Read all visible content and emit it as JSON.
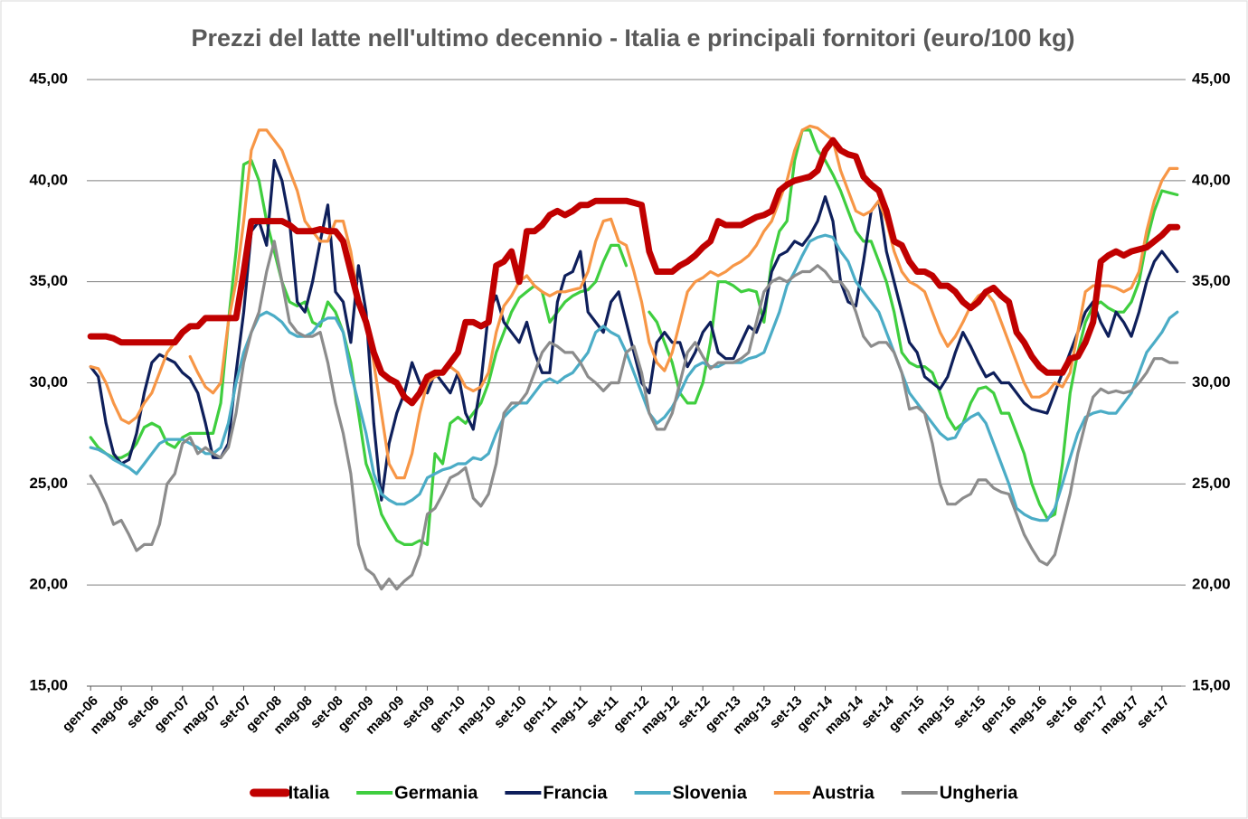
{
  "chart_data": {
    "type": "line",
    "title": "Prezzi del latte nell'ultimo decennio - Italia e principali fornitori (euro/100 kg)",
    "categories": [
      "gen-06",
      null,
      null,
      null,
      "mag-06",
      null,
      null,
      null,
      "set-06",
      null,
      null,
      null,
      "gen-07",
      null,
      null,
      null,
      "mag-07",
      null,
      null,
      null,
      "set-07",
      null,
      null,
      null,
      "gen-08",
      null,
      null,
      null,
      "mag-08",
      null,
      null,
      null,
      "set-08",
      null,
      null,
      null,
      "gen-09",
      null,
      null,
      null,
      "mag-09",
      null,
      null,
      null,
      "set-09",
      null,
      null,
      null,
      "gen-10",
      null,
      null,
      null,
      "mag-10",
      null,
      null,
      null,
      "set-10",
      null,
      null,
      null,
      "gen-11",
      null,
      null,
      null,
      "mag-11",
      null,
      null,
      null,
      "set-11",
      null,
      null,
      null,
      "gen-12",
      null,
      null,
      null,
      "mag-12",
      null,
      null,
      null,
      "set-12",
      null,
      null,
      null,
      "gen-13",
      null,
      null,
      null,
      "mag-13",
      null,
      null,
      null,
      "set-13",
      null,
      null,
      null,
      "gen-14",
      null,
      null,
      null,
      "mag-14",
      null,
      null,
      null,
      "set-14",
      null,
      null,
      null,
      "gen-15",
      null,
      null,
      null,
      "mag-15",
      null,
      null,
      null,
      "set-15",
      null,
      null,
      null,
      "gen-16",
      null,
      null,
      null,
      "mag-16",
      null,
      null,
      null,
      "set-16",
      null,
      null,
      null,
      "gen-17",
      null,
      null,
      null,
      "mag-17",
      null,
      null,
      null,
      "set-17",
      null,
      null
    ],
    "series": [
      {
        "name": "Italia",
        "color": "#c00000",
        "values": [
          32.3,
          32.3,
          32.3,
          32.2,
          32.0,
          32.0,
          32.0,
          32.0,
          32.0,
          32.0,
          32.0,
          32.0,
          32.5,
          32.8,
          32.8,
          33.2,
          33.2,
          33.2,
          33.2,
          33.2,
          35.5,
          38.0,
          38.0,
          38.0,
          38.0,
          38.0,
          37.8,
          37.5,
          37.5,
          37.5,
          37.6,
          37.5,
          37.5,
          37.0,
          35.5,
          34.0,
          33.0,
          31.5,
          30.5,
          30.2,
          30.0,
          29.3,
          29.0,
          29.5,
          30.3,
          30.5,
          30.5,
          31.0,
          31.5,
          33.0,
          33.0,
          32.8,
          33.0,
          35.8,
          36.0,
          36.5,
          35.0,
          37.5,
          37.5,
          37.8,
          38.3,
          38.5,
          38.3,
          38.5,
          38.8,
          38.8,
          39.0,
          39.0,
          39.0,
          39.0,
          39.0,
          38.9,
          38.8,
          36.5,
          35.5,
          35.5,
          35.5,
          35.8,
          36.0,
          36.3,
          36.7,
          37.0,
          38.0,
          37.8,
          37.8,
          37.8,
          38.0,
          38.2,
          38.3,
          38.5,
          39.5,
          39.8,
          40.0,
          40.1,
          40.2,
          40.5,
          41.5,
          42.0,
          41.5,
          41.3,
          41.2,
          40.2,
          39.8,
          39.5,
          38.5,
          37.0,
          36.8,
          36.0,
          35.5,
          35.5,
          35.3,
          34.8,
          34.8,
          34.5,
          34.0,
          33.7,
          34.0,
          34.5,
          34.7,
          34.3,
          34.0,
          32.5,
          32.0,
          31.3,
          30.8,
          30.5,
          30.5,
          30.5,
          31.2,
          31.3,
          32.0,
          33.0,
          36.0,
          36.3,
          36.5,
          36.3,
          36.5,
          36.6,
          36.7,
          37.0,
          37.3,
          37.7,
          37.7
        ]
      },
      {
        "name": "Germania",
        "color": "#3fce3f",
        "values": [
          27.3,
          26.8,
          26.5,
          26.3,
          26.3,
          26.5,
          27.0,
          27.8,
          28.0,
          27.8,
          27.0,
          26.8,
          27.3,
          27.5,
          27.5,
          27.5,
          27.5,
          29.0,
          33.0,
          36.5,
          40.8,
          41.0,
          40.0,
          38.0,
          36.5,
          35.0,
          34.0,
          33.8,
          34.0,
          33.0,
          32.8,
          34.0,
          33.5,
          32.5,
          31.0,
          28.5,
          26.0,
          25.0,
          23.5,
          22.8,
          22.2,
          22.0,
          22.0,
          22.2,
          22.0,
          26.5,
          26.0,
          28.0,
          28.3,
          28.0,
          28.5,
          29.0,
          30.0,
          31.5,
          32.5,
          33.5,
          34.2,
          34.5,
          34.8,
          34.5,
          33.0,
          33.5,
          34.0,
          34.3,
          34.5,
          34.6,
          35.0,
          36.0,
          36.8,
          36.8,
          35.8,
          null,
          null,
          33.5,
          33.0,
          32.0,
          31.0,
          29.5,
          29.0,
          29.0,
          30.0,
          32.0,
          35.0,
          35.0,
          34.8,
          34.5,
          34.6,
          34.5,
          33.0,
          36.0,
          37.5,
          38.0,
          41.0,
          42.5,
          42.5,
          41.5,
          41.0,
          40.3,
          39.5,
          38.5,
          37.5,
          37.0,
          37.0,
          36.0,
          35.0,
          33.5,
          31.5,
          31.0,
          30.8,
          30.8,
          30.5,
          29.5,
          28.3,
          27.7,
          28.0,
          29.0,
          29.7,
          29.8,
          29.5,
          28.5,
          28.5,
          27.5,
          26.5,
          25.0,
          24.0,
          23.3,
          23.5,
          26.0,
          29.5,
          31.5,
          33.0,
          33.8,
          34.0,
          33.7,
          33.5,
          33.5,
          34.0,
          35.0,
          37.0,
          38.5,
          39.5,
          39.4,
          39.3
        ]
      },
      {
        "name": "Francia",
        "color": "#0e1f5b",
        "values": [
          30.8,
          30.3,
          28.0,
          26.5,
          26.0,
          26.2,
          27.5,
          29.5,
          31.0,
          31.4,
          31.2,
          31.0,
          30.5,
          30.2,
          29.5,
          28.0,
          26.3,
          26.3,
          27.0,
          30.5,
          33.5,
          37.5,
          38.0,
          36.8,
          41.0,
          40.0,
          38.0,
          34.0,
          33.5,
          35.0,
          37.0,
          38.8,
          34.5,
          34.0,
          32.0,
          35.8,
          33.5,
          28.0,
          24.2,
          27.0,
          28.5,
          29.5,
          31.0,
          30.0,
          29.5,
          30.5,
          30.0,
          29.5,
          30.5,
          28.5,
          27.7,
          30.0,
          33.5,
          34.3,
          33.0,
          32.5,
          32.0,
          33.0,
          31.5,
          30.5,
          30.5,
          34.0,
          35.3,
          35.5,
          36.5,
          33.5,
          33.0,
          32.5,
          34.0,
          34.5,
          33.0,
          31.5,
          30.0,
          29.5,
          32.0,
          32.5,
          32.0,
          32.0,
          30.8,
          31.5,
          32.5,
          33.0,
          31.5,
          31.2,
          31.2,
          32.0,
          32.8,
          32.5,
          33.5,
          35.5,
          36.3,
          36.5,
          37.0,
          36.8,
          37.3,
          38.0,
          39.2,
          38.0,
          35.0,
          34.0,
          33.8,
          36.0,
          38.5,
          39.0,
          36.5,
          35.0,
          33.5,
          32.0,
          31.5,
          30.3,
          30.0,
          29.7,
          30.3,
          31.5,
          32.5,
          31.8,
          31.0,
          30.3,
          30.5,
          30.0,
          30.0,
          29.5,
          29.0,
          28.7,
          28.6,
          28.5,
          29.5,
          30.5,
          31.5,
          32.5,
          33.5,
          34.0,
          33.0,
          32.3,
          33.5,
          33.0,
          32.3,
          33.5,
          35.0,
          36.0,
          36.5,
          36.0,
          35.5
        ]
      },
      {
        "name": "Slovenia",
        "color": "#4bacc6",
        "values": [
          26.8,
          26.7,
          26.5,
          26.2,
          26.0,
          25.8,
          25.5,
          26.0,
          26.5,
          27.0,
          27.2,
          27.2,
          27.2,
          27.0,
          26.8,
          26.5,
          26.5,
          26.8,
          28.0,
          30.0,
          31.5,
          32.5,
          33.3,
          33.5,
          33.3,
          33.0,
          32.5,
          32.3,
          32.3,
          32.5,
          33.0,
          33.2,
          33.2,
          32.5,
          30.5,
          29.0,
          27.5,
          25.5,
          24.5,
          24.2,
          24.0,
          24.0,
          24.2,
          24.5,
          25.3,
          25.5,
          25.7,
          25.8,
          26.0,
          26.0,
          26.3,
          26.2,
          26.5,
          27.5,
          28.3,
          28.7,
          29.0,
          29.0,
          29.5,
          30.0,
          30.2,
          30.0,
          30.3,
          30.5,
          31.0,
          31.5,
          32.5,
          32.8,
          32.5,
          32.3,
          31.5,
          30.5,
          29.5,
          28.5,
          28.0,
          28.3,
          28.8,
          29.5,
          30.3,
          30.8,
          31.0,
          30.8,
          30.8,
          31.0,
          31.0,
          31.0,
          31.2,
          31.3,
          31.5,
          32.5,
          33.5,
          34.8,
          35.5,
          36.3,
          37.0,
          37.2,
          37.3,
          37.2,
          36.5,
          36.0,
          35.0,
          34.5,
          34.0,
          33.5,
          32.5,
          31.5,
          30.5,
          29.5,
          29.0,
          28.5,
          28.0,
          27.5,
          27.2,
          27.3,
          28.0,
          28.3,
          28.5,
          28.0,
          27.0,
          26.0,
          25.0,
          23.8,
          23.5,
          23.3,
          23.2,
          23.2,
          23.8,
          25.0,
          26.3,
          27.5,
          28.3,
          28.5,
          28.6,
          28.5,
          28.5,
          29.0,
          29.5,
          30.5,
          31.5,
          32.0,
          32.5,
          33.2,
          33.5
        ]
      },
      {
        "name": "Austria",
        "color": "#f79646",
        "values": [
          30.8,
          30.7,
          30.0,
          29.0,
          28.2,
          28.0,
          28.3,
          29.0,
          29.5,
          30.5,
          31.5,
          32.0,
          null,
          31.3,
          30.5,
          29.8,
          29.5,
          30.0,
          33.0,
          35.0,
          38.0,
          41.5,
          42.5,
          42.5,
          42.0,
          41.5,
          40.5,
          39.5,
          38.0,
          37.5,
          37.0,
          37.0,
          38.0,
          38.0,
          36.5,
          34.0,
          33.0,
          31.0,
          28.5,
          26.0,
          25.3,
          25.3,
          26.5,
          28.5,
          30.0,
          30.3,
          30.5,
          30.8,
          30.5,
          29.8,
          29.6,
          29.8,
          30.5,
          32.5,
          33.8,
          34.3,
          35.0,
          35.3,
          34.8,
          34.5,
          34.3,
          34.5,
          34.5,
          34.6,
          34.7,
          35.5,
          37.0,
          38.0,
          38.1,
          37.0,
          36.8,
          35.5,
          34.0,
          32.0,
          31.0,
          30.6,
          31.5,
          33.0,
          34.5,
          35.0,
          35.2,
          35.5,
          35.3,
          35.5,
          35.8,
          36.0,
          36.3,
          36.8,
          37.5,
          38.0,
          39.0,
          40.0,
          41.5,
          42.5,
          42.7,
          42.6,
          42.3,
          42.0,
          40.5,
          39.5,
          38.5,
          38.3,
          38.5,
          39.0,
          38.0,
          36.5,
          35.5,
          35.0,
          34.8,
          34.5,
          33.5,
          32.5,
          31.8,
          32.3,
          33.0,
          33.8,
          34.3,
          34.5,
          34.0,
          33.0,
          32.0,
          31.0,
          30.0,
          29.3,
          29.3,
          29.5,
          30.0,
          29.8,
          30.5,
          32.5,
          34.5,
          34.8,
          34.8,
          34.8,
          34.7,
          34.5,
          34.7,
          35.5,
          37.5,
          39.0,
          40.0,
          40.6,
          40.6
        ]
      },
      {
        "name": "Ungheria",
        "color": "#8c8c8c",
        "values": [
          25.4,
          24.8,
          24.0,
          23.0,
          23.2,
          22.5,
          21.7,
          22.0,
          22.0,
          23.0,
          25.0,
          25.5,
          27.0,
          27.3,
          26.5,
          26.8,
          26.5,
          26.3,
          26.8,
          28.5,
          31.0,
          32.5,
          33.5,
          35.5,
          37.0,
          35.0,
          33.0,
          32.5,
          32.3,
          32.3,
          32.5,
          31.0,
          29.0,
          27.5,
          25.5,
          22.0,
          20.8,
          20.5,
          19.8,
          20.3,
          19.8,
          20.2,
          20.5,
          21.5,
          23.5,
          23.8,
          24.5,
          25.3,
          25.5,
          25.8,
          24.3,
          23.9,
          24.5,
          26.0,
          28.5,
          29.0,
          29.0,
          29.5,
          30.5,
          31.5,
          32.0,
          31.8,
          31.5,
          31.5,
          31.0,
          30.3,
          30.0,
          29.6,
          30.0,
          30.0,
          31.5,
          31.8,
          30.5,
          28.5,
          27.7,
          27.7,
          28.5,
          30.0,
          31.5,
          32.0,
          31.3,
          30.7,
          31.0,
          31.0,
          31.0,
          31.2,
          31.5,
          33.0,
          34.5,
          35.0,
          35.2,
          35.0,
          35.3,
          35.5,
          35.5,
          35.8,
          35.5,
          35.0,
          35.0,
          34.5,
          33.5,
          32.3,
          31.8,
          32.0,
          32.0,
          31.5,
          30.5,
          28.7,
          28.8,
          28.5,
          27.0,
          25.0,
          24.0,
          24.0,
          24.3,
          24.5,
          25.2,
          25.2,
          24.8,
          24.6,
          24.5,
          23.5,
          22.5,
          21.8,
          21.2,
          21.0,
          21.5,
          23.0,
          24.5,
          26.5,
          28.0,
          29.3,
          29.7,
          29.5,
          29.6,
          29.5,
          29.6,
          30.0,
          30.5,
          31.2,
          31.2,
          31.0,
          31.0
        ]
      }
    ],
    "ylim": [
      15,
      45
    ],
    "yticks": [
      {
        "value": 15,
        "label": "15,00"
      },
      {
        "value": 20,
        "label": "20,00"
      },
      {
        "value": 25,
        "label": "25,00"
      },
      {
        "value": 30,
        "label": "30,00"
      },
      {
        "value": 35,
        "label": "35,00"
      },
      {
        "value": 40,
        "label": "40,00"
      },
      {
        "value": 45,
        "label": "45,00"
      }
    ],
    "y2lim": [
      15,
      45
    ],
    "y2ticks": [
      {
        "value": 15,
        "label": "15,00"
      },
      {
        "value": 20,
        "label": "20,00"
      },
      {
        "value": 25,
        "label": "25,00"
      },
      {
        "value": 30,
        "label": "30,00"
      },
      {
        "value": 35,
        "label": "35,00"
      },
      {
        "value": 40,
        "label": "40,00"
      },
      {
        "value": 45,
        "label": "45,00"
      }
    ],
    "grid": true,
    "legend": "bottom"
  }
}
